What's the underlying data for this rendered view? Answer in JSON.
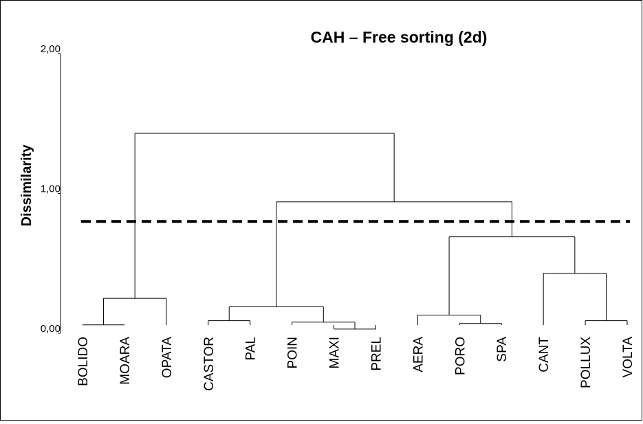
{
  "chart_data": {
    "type": "dendrogram",
    "title": "CAH – Free sorting (2d)",
    "y_label": "Dissimilarity",
    "categories": [
      "BOLIDO",
      "MOARA",
      "OPATA",
      "CASTOR",
      "PAL",
      "POIN",
      "MAXI",
      "PREL",
      "AERA",
      "PORO",
      "SPA",
      "CANT",
      "POLLUX",
      "VOLTA"
    ],
    "merges": [
      {
        "children": [
          0,
          1
        ],
        "height": 0.06
      },
      {
        "children": [
          14,
          2
        ],
        "height": 0.25
      },
      {
        "children": [
          3,
          4
        ],
        "height": 0.09
      },
      {
        "children": [
          6,
          7
        ],
        "height": 0.03
      },
      {
        "children": [
          5,
          17
        ],
        "height": 0.08
      },
      {
        "children": [
          16,
          18
        ],
        "height": 0.19
      },
      {
        "children": [
          9,
          10
        ],
        "height": 0.07
      },
      {
        "children": [
          8,
          20
        ],
        "height": 0.13
      },
      {
        "children": [
          12,
          13
        ],
        "height": 0.09
      },
      {
        "children": [
          11,
          22
        ],
        "height": 0.43
      },
      {
        "children": [
          21,
          23
        ],
        "height": 0.69
      },
      {
        "children": [
          19,
          24
        ],
        "height": 0.94
      },
      {
        "children": [
          15,
          25
        ],
        "height": 1.43
      }
    ],
    "cut_height": 0.8,
    "ylim": [
      0,
      2
    ],
    "yticks": [
      {
        "value": 0,
        "label": "0,00"
      },
      {
        "value": 1,
        "label": "1,00"
      },
      {
        "value": 2,
        "label": "2,00"
      }
    ]
  }
}
